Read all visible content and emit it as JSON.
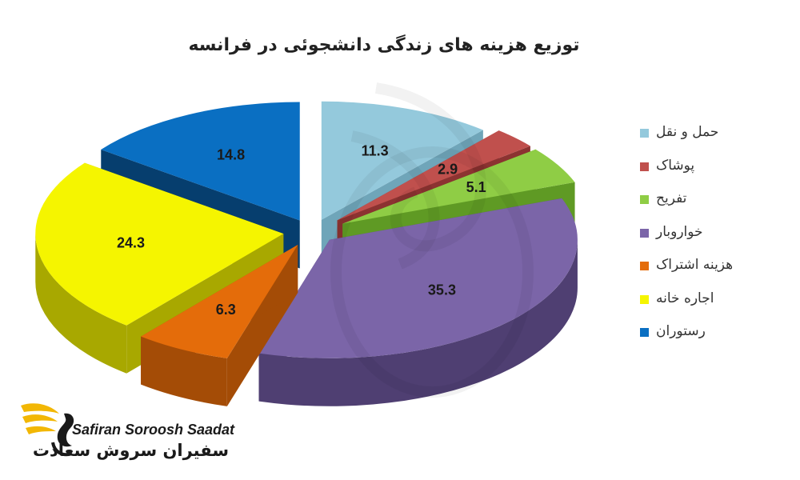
{
  "chart_data": {
    "type": "pie",
    "style": "3d-exploded",
    "title": "توزیع هزینه های زندگی دانشجوئی در فرانسه",
    "legend_position": "right",
    "series": [
      {
        "label": "حمل و نقل",
        "value": 11.3,
        "color": "#94c9dc",
        "side": "#6fa5b9"
      },
      {
        "label": "پوشاک",
        "value": 2.9,
        "color": "#c0504d",
        "side": "#8c3331"
      },
      {
        "label": "تفریح",
        "value": 5.1,
        "color": "#8fcd45",
        "side": "#5f9a24"
      },
      {
        "label": "خواروبار",
        "value": 35.3,
        "color": "#7b65a8",
        "side": "#4f3f72"
      },
      {
        "label": "هزینه اشتراک",
        "value": 6.3,
        "color": "#e46c0a",
        "side": "#a44c06"
      },
      {
        "label": "اجاره خانه",
        "value": 24.3,
        "color": "#f5f500",
        "side": "#a8a800"
      },
      {
        "label": "رستوران",
        "value": 14.8,
        "color": "#0a6fc2",
        "side": "#063e6e"
      }
    ]
  },
  "brand": {
    "name_en": "Safiran Soroosh Saadat",
    "name_fa": "سفیران سروش سعادت",
    "logo_icon": "swan-wings-icon",
    "accent": "#f2b705"
  }
}
